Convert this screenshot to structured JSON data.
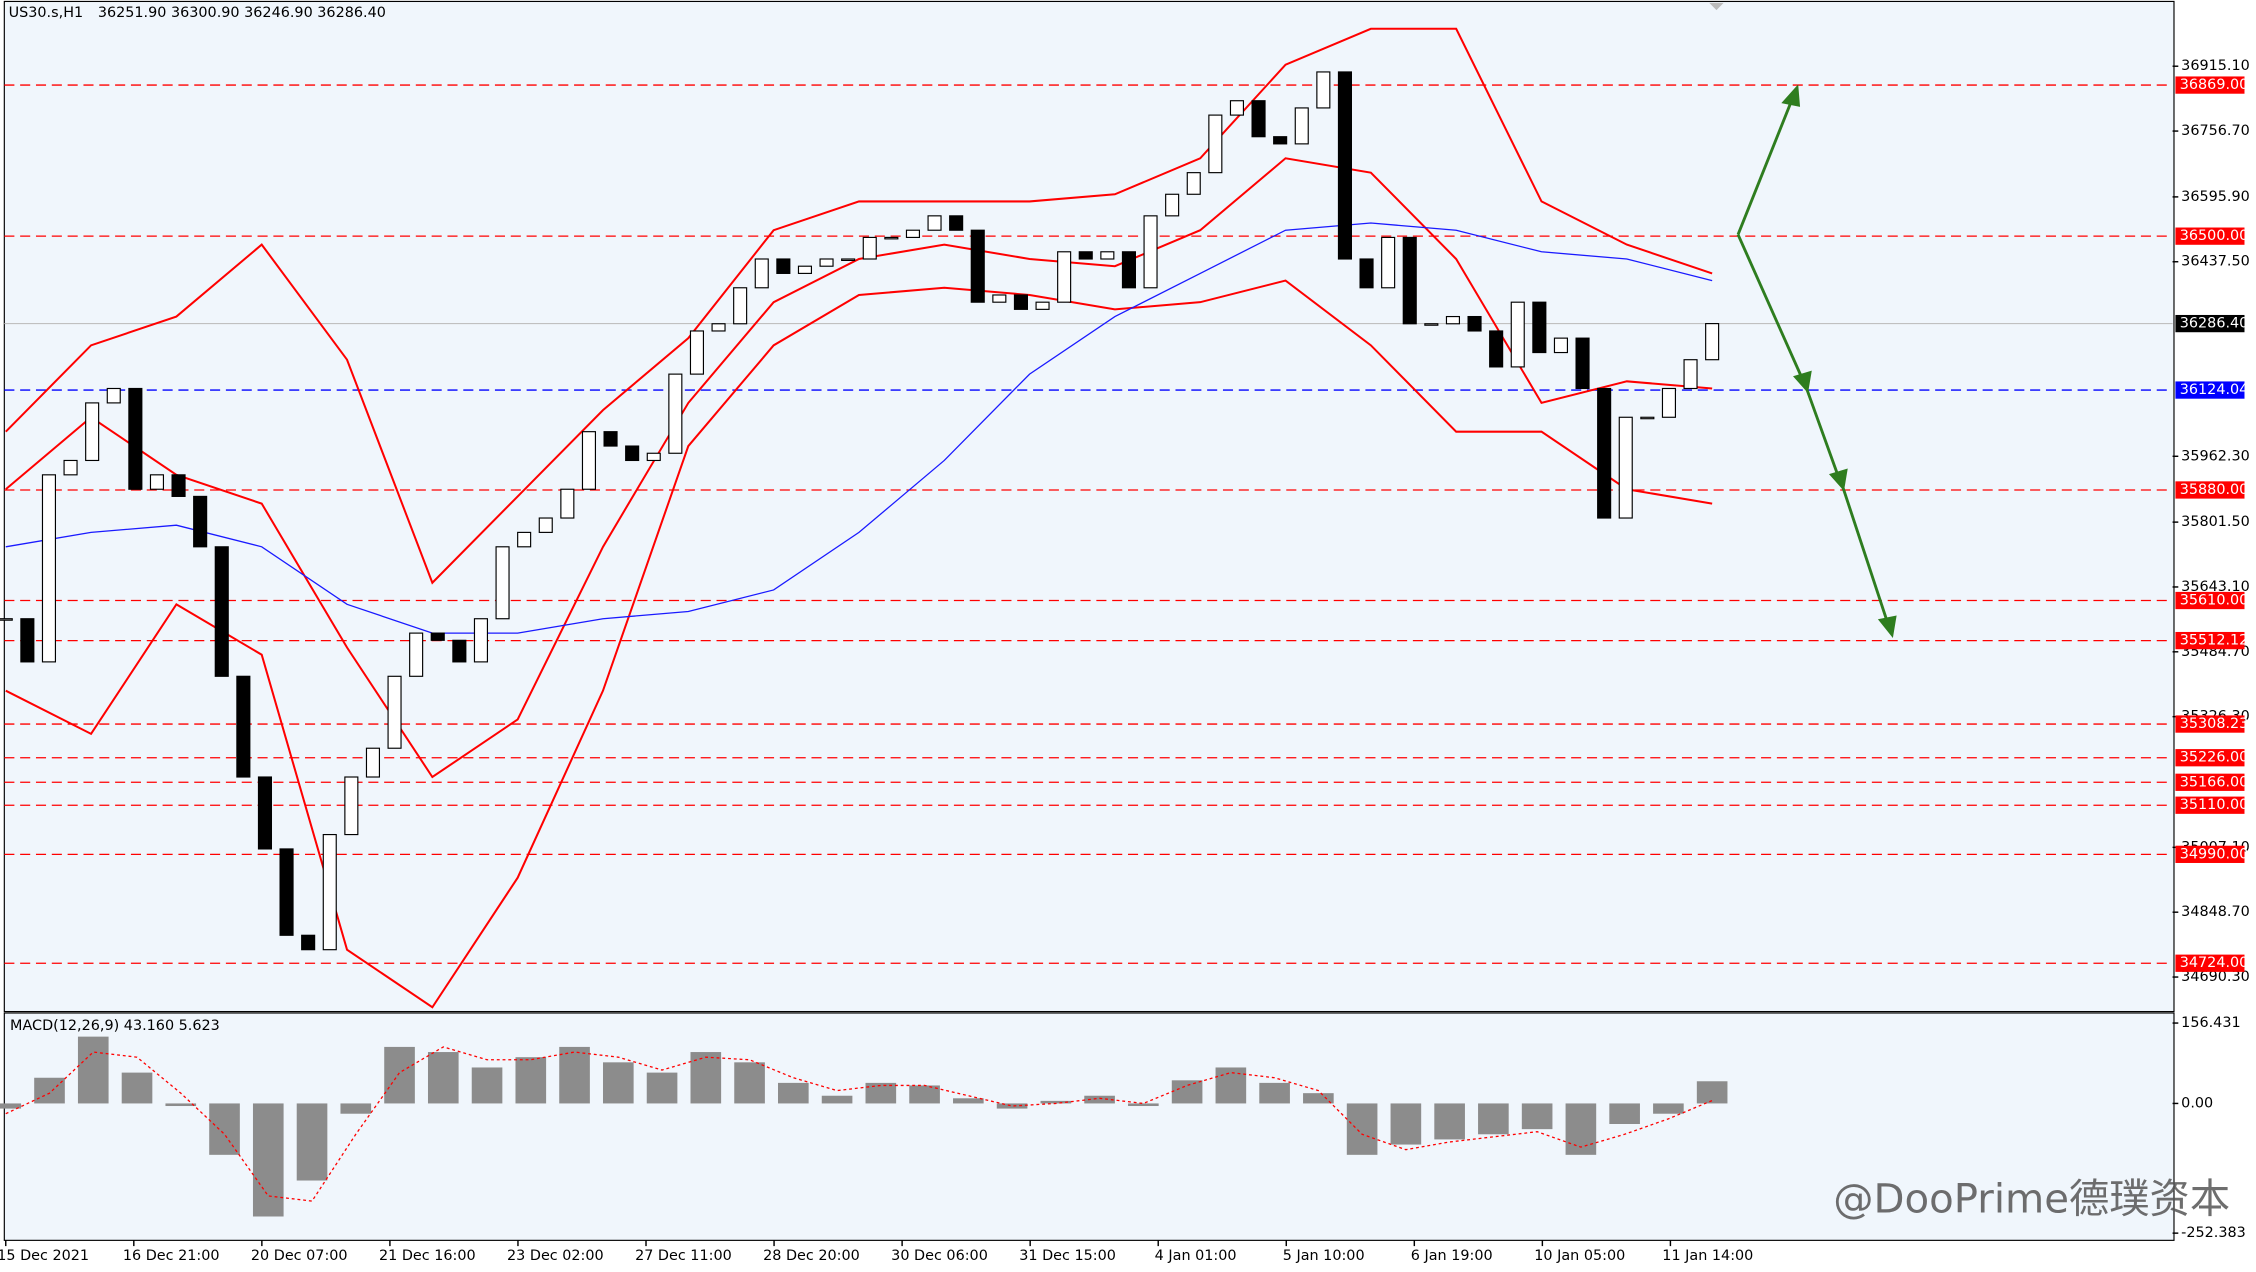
{
  "header": {
    "symbol": "US30.s,H1",
    "quote": "36251.90 36300.90 36246.90 36286.40"
  },
  "price_axis": {
    "ylim": [
      34609.5,
      37069.8
    ],
    "ticks": [
      {
        "value": 36915.1,
        "label": "36915.10"
      },
      {
        "value": 36756.7,
        "label": "36756.70"
      },
      {
        "value": 36595.9,
        "label": "36595.90"
      },
      {
        "value": 36437.5,
        "label": "36437.50"
      },
      {
        "value": 35962.3,
        "label": "35962.30"
      },
      {
        "value": 35801.5,
        "label": "35801.50"
      },
      {
        "value": 35643.1,
        "label": "35643.10"
      },
      {
        "value": 35484.7,
        "label": "35484.70"
      },
      {
        "value": 35326.3,
        "label": "35326.30"
      },
      {
        "value": 35007.1,
        "label": "35007.10"
      },
      {
        "value": 34848.7,
        "label": "34848.70"
      },
      {
        "value": 34690.3,
        "label": "34690.30"
      }
    ]
  },
  "levels": [
    {
      "value": 36869,
      "label": "36869.00",
      "color": "#ff0000"
    },
    {
      "value": 36500,
      "label": "36500.00",
      "color": "#ff0000"
    },
    {
      "value": 36124.04,
      "label": "36124.04",
      "color": "#0000ff"
    },
    {
      "value": 35880,
      "label": "35880.00",
      "color": "#ff0000"
    },
    {
      "value": 35610,
      "label": "35610.00",
      "color": "#ff0000"
    },
    {
      "value": 35512.12,
      "label": "35512.12",
      "color": "#ff0000"
    },
    {
      "value": 35308.23,
      "label": "35308.23",
      "color": "#ff0000"
    },
    {
      "value": 35226,
      "label": "35226.00",
      "color": "#ff0000"
    },
    {
      "value": 35166,
      "label": "35166.00",
      "color": "#ff0000"
    },
    {
      "value": 35110,
      "label": "35110.00",
      "color": "#ff0000"
    },
    {
      "value": 34990,
      "label": "34990.00",
      "color": "#ff0000"
    },
    {
      "value": 34724,
      "label": "34724.00",
      "color": "#ff0000"
    }
  ],
  "current_price": {
    "value": 36286.4,
    "label": "36286.40"
  },
  "price": {
    "closes": [
      35565.5,
      35460.1,
      35917.0,
      35952.1,
      36092.7,
      36127.9,
      35881.8,
      35917.0,
      35864.3,
      35741.2,
      35424.9,
      35178.9,
      35003.2,
      34792.3,
      34757.1,
      35038.3,
      35178.9,
      35249.2,
      35424.9,
      35530.4,
      35512.8,
      35460.1,
      35565.5,
      35741.2,
      35776.4,
      35811.5,
      35881.8,
      36022.4,
      35987.3,
      35952.1,
      35969.7,
      36163.0,
      36268.4,
      36286.0,
      36373.9,
      36444.2,
      36409.0,
      36426.6,
      36444.2,
      36444.2,
      36496.9,
      36496.9,
      36514.5,
      36549.6,
      36514.5,
      36338.7,
      36356.3,
      36321.2,
      36338.7,
      36461.8,
      36444.2,
      36461.8,
      36373.9,
      36549.6,
      36602.3,
      36655.1,
      36795.7,
      36830.8,
      36742.9,
      36725.4,
      36813.2,
      36901.1,
      36444.2,
      36373.9,
      36496.9,
      36286.0,
      36286.0,
      36303.6,
      36268.4,
      36180.6,
      36338.7,
      36215.7,
      36250.9,
      36127.9,
      35811.5,
      36057.6,
      36057.6,
      36127.9,
      36198.2,
      36286.4
    ]
  },
  "bands": {
    "color": "#ff0000",
    "upper": [
      36022.4,
      36233.3,
      36303.6,
      36479.3,
      36198.2,
      35653.4,
      35864.3,
      36075.1,
      36250.9,
      36514.5,
      36584.8,
      36584.8,
      36584.8,
      36602.3,
      36690.2,
      36918.7,
      37006.5,
      37006.5,
      36584.8,
      36479.3,
      36409.0
    ],
    "middle": [
      35881.8,
      36057.6,
      35917.0,
      35846.7,
      35495.2,
      35178.9,
      35319.5,
      35741.2,
      36092.7,
      36338.7,
      36444.2,
      36479.3,
      36444.2,
      36426.6,
      36514.5,
      36690.2,
      36655.1,
      36444.2,
      36092.7,
      36145.4,
      36127.9
    ],
    "lower": [
      35389.8,
      35284.3,
      35600.7,
      35477.6,
      34757.1,
      34616.5,
      34932.9,
      35389.8,
      35987.3,
      36233.3,
      36356.3,
      36373.9,
      36356.3,
      36321.2,
      36338.7,
      36391.5,
      36233.3,
      36022.4,
      36022.4,
      35881.8,
      35846.7
    ]
  },
  "ma": {
    "color": "#1a1aff",
    "values": [
      35741.2,
      35776.4,
      35794.0,
      35741.2,
      35600.7,
      35530.4,
      35530.4,
      35565.5,
      35583.1,
      35635.8,
      35776.4,
      35952.1,
      36163.0,
      36303.6,
      36409.0,
      36514.5,
      36532.1,
      36514.5,
      36461.8,
      36444.2,
      36391.5
    ]
  },
  "time_axis": {
    "labels": [
      "15 Dec 2021",
      "16 Dec 21:00",
      "20 Dec 07:00",
      "21 Dec 16:00",
      "23 Dec 02:00",
      "27 Dec 11:00",
      "28 Dec 20:00",
      "30 Dec 06:00",
      "31 Dec 15:00",
      "4 Jan 01:00",
      "5 Jan 10:00",
      "6 Jan 19:00",
      "10 Jan 05:00",
      "11 Jan 14:00"
    ]
  },
  "macd": {
    "title": "MACD(12,26,9) 43.160 5.623",
    "ylim": [
      -266.4,
      176.0
    ],
    "ticks": [
      {
        "value": 156.431,
        "label": "156.431"
      },
      {
        "value": 0,
        "label": "0.00"
      },
      {
        "value": -252.383,
        "label": "-252.383"
      }
    ],
    "histogram": [
      -10,
      50,
      130,
      60,
      -5,
      -100,
      -220,
      -150,
      -20,
      110,
      100,
      70,
      90,
      110,
      80,
      60,
      100,
      80,
      40,
      15,
      40,
      35,
      10,
      -10,
      5,
      15,
      -5,
      45,
      70,
      40,
      20,
      -100,
      -80,
      -70,
      -60,
      -50,
      -100,
      -40,
      -20,
      43.16
    ],
    "signal": [
      -20,
      20,
      100,
      90,
      20,
      -60,
      -180,
      -190,
      -60,
      60,
      110,
      85,
      85,
      100,
      90,
      65,
      90,
      85,
      50,
      25,
      35,
      35,
      15,
      -5,
      0,
      10,
      0,
      35,
      60,
      50,
      25,
      -60,
      -90,
      -75,
      -65,
      -55,
      -85,
      -60,
      -30,
      5.623
    ]
  },
  "watermark": "@DooPrime德璞资本"
}
